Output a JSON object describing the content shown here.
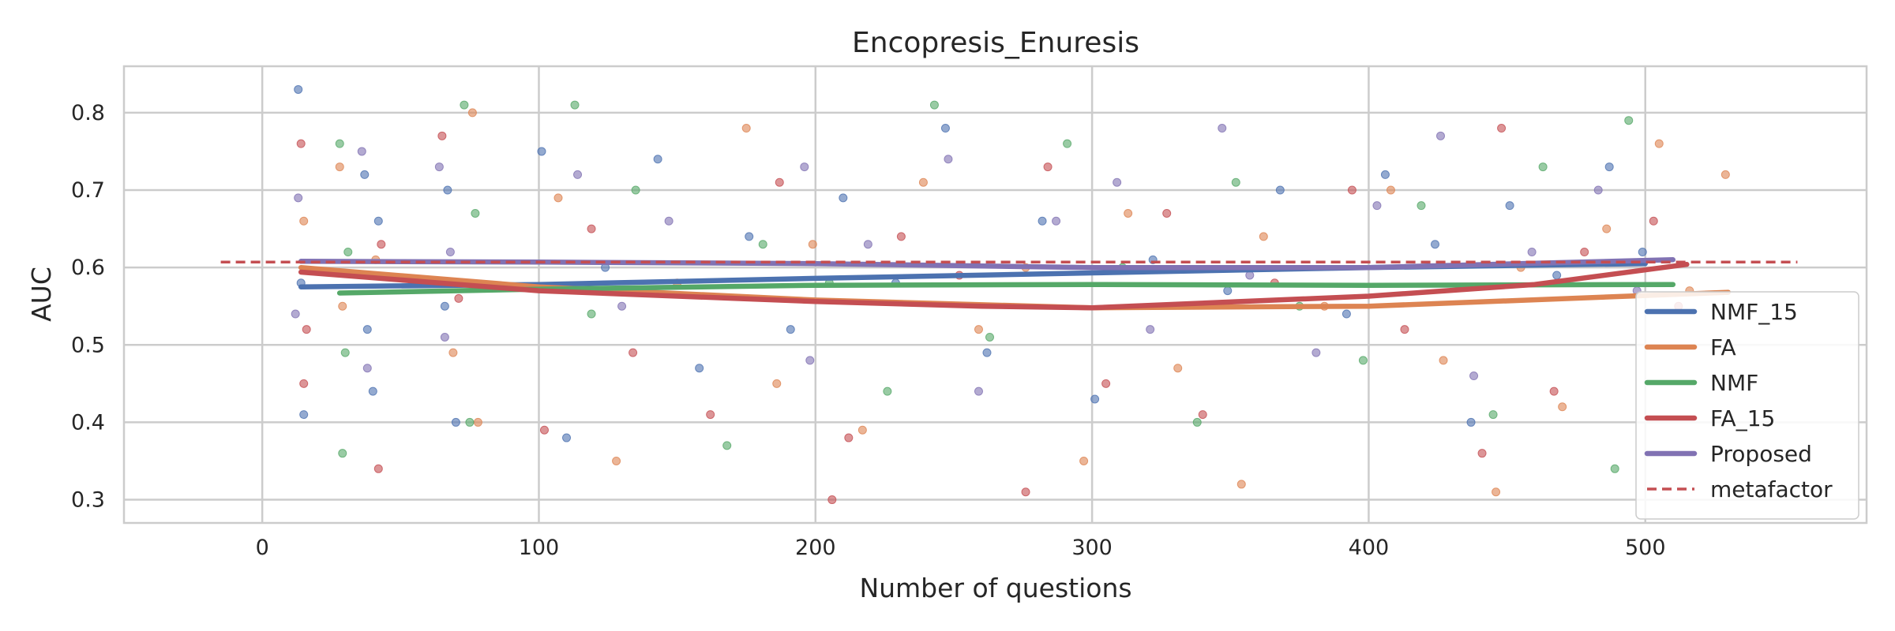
{
  "chart_data": {
    "type": "scatter",
    "title": "Encopresis_Enuresis",
    "xlabel": "Number of questions",
    "ylabel": "AUC",
    "xlim": [
      -50,
      580
    ],
    "ylim": [
      0.27,
      0.86
    ],
    "x_ticks": [
      0,
      100,
      200,
      300,
      400,
      500
    ],
    "y_ticks": [
      0.3,
      0.4,
      0.5,
      0.6,
      0.7,
      0.8
    ],
    "x_tick_labels": [
      "0",
      "100",
      "200",
      "300",
      "400",
      "500"
    ],
    "y_tick_labels": [
      "0.3",
      "0.4",
      "0.5",
      "0.6",
      "0.7",
      "0.8"
    ],
    "grid": true,
    "legend_position": "lower-right",
    "series": [
      {
        "name": "NMF_15",
        "color": "#4c72b0",
        "trend": {
          "x": [
            14,
            100,
            200,
            300,
            400,
            500
          ],
          "y": [
            0.575,
            0.578,
            0.586,
            0.593,
            0.6,
            0.605
          ]
        },
        "points": {
          "x": [
            13,
            14,
            15,
            37,
            38,
            40,
            42,
            66,
            67,
            70,
            101,
            110,
            124,
            143,
            158,
            176,
            191,
            210,
            229,
            247,
            262,
            282,
            301,
            322,
            349,
            368,
            392,
            406,
            424,
            437,
            451,
            468,
            487,
            499
          ],
          "y": [
            0.83,
            0.58,
            0.41,
            0.72,
            0.52,
            0.44,
            0.66,
            0.55,
            0.7,
            0.4,
            0.75,
            0.38,
            0.6,
            0.74,
            0.47,
            0.64,
            0.52,
            0.69,
            0.58,
            0.78,
            0.49,
            0.66,
            0.43,
            0.61,
            0.57,
            0.7,
            0.54,
            0.72,
            0.63,
            0.4,
            0.68,
            0.59,
            0.73,
            0.62
          ]
        }
      },
      {
        "name": "FA",
        "color": "#dd8452",
        "trend": {
          "x": [
            14,
            100,
            200,
            300,
            400,
            530
          ],
          "y": [
            0.6,
            0.575,
            0.558,
            0.548,
            0.55,
            0.568
          ]
        },
        "points": {
          "x": [
            15,
            28,
            29,
            41,
            69,
            76,
            78,
            107,
            128,
            150,
            175,
            186,
            199,
            217,
            239,
            259,
            276,
            297,
            313,
            331,
            354,
            362,
            384,
            408,
            427,
            446,
            455,
            470,
            486,
            505,
            516,
            529
          ],
          "y": [
            0.66,
            0.73,
            0.55,
            0.61,
            0.49,
            0.8,
            0.4,
            0.69,
            0.35,
            0.58,
            0.78,
            0.45,
            0.63,
            0.39,
            0.71,
            0.52,
            0.6,
            0.35,
            0.67,
            0.47,
            0.32,
            0.64,
            0.55,
            0.7,
            0.48,
            0.31,
            0.6,
            0.42,
            0.65,
            0.76,
            0.57,
            0.72
          ]
        }
      },
      {
        "name": "NMF",
        "color": "#55a868",
        "trend": {
          "x": [
            28,
            100,
            200,
            300,
            400,
            510
          ],
          "y": [
            0.567,
            0.572,
            0.577,
            0.578,
            0.577,
            0.578
          ]
        },
        "points": {
          "x": [
            28,
            29,
            30,
            31,
            73,
            75,
            77,
            113,
            119,
            135,
            168,
            181,
            205,
            226,
            243,
            263,
            291,
            311,
            338,
            352,
            375,
            398,
            419,
            445,
            463,
            489,
            494
          ],
          "y": [
            0.76,
            0.36,
            0.49,
            0.62,
            0.81,
            0.4,
            0.67,
            0.81,
            0.54,
            0.7,
            0.37,
            0.63,
            0.58,
            0.44,
            0.81,
            0.51,
            0.76,
            0.6,
            0.4,
            0.71,
            0.55,
            0.48,
            0.68,
            0.41,
            0.73,
            0.34,
            0.79
          ]
        }
      },
      {
        "name": "FA_15",
        "color": "#c44e52",
        "trend": {
          "x": [
            14,
            100,
            200,
            260,
            300,
            400,
            460,
            515
          ],
          "y": [
            0.594,
            0.57,
            0.556,
            0.55,
            0.548,
            0.563,
            0.578,
            0.604
          ]
        },
        "points": {
          "x": [
            14,
            15,
            16,
            42,
            43,
            65,
            71,
            102,
            119,
            134,
            162,
            187,
            206,
            212,
            231,
            252,
            276,
            284,
            305,
            327,
            340,
            366,
            394,
            413,
            441,
            448,
            467,
            478,
            503,
            512
          ],
          "y": [
            0.76,
            0.45,
            0.52,
            0.34,
            0.63,
            0.77,
            0.56,
            0.39,
            0.65,
            0.49,
            0.41,
            0.71,
            0.3,
            0.38,
            0.64,
            0.59,
            0.31,
            0.73,
            0.45,
            0.67,
            0.41,
            0.58,
            0.7,
            0.52,
            0.36,
            0.78,
            0.44,
            0.62,
            0.66,
            0.55
          ]
        }
      },
      {
        "name": "Proposed",
        "color": "#8172b3",
        "trend": {
          "x": [
            14,
            100,
            200,
            300,
            400,
            510
          ],
          "y": [
            0.608,
            0.607,
            0.605,
            0.6,
            0.6,
            0.61
          ]
        },
        "points": {
          "x": [
            12,
            13,
            36,
            38,
            64,
            66,
            68,
            114,
            130,
            147,
            196,
            198,
            219,
            248,
            259,
            287,
            309,
            321,
            347,
            357,
            381,
            403,
            426,
            438,
            459,
            483,
            497
          ],
          "y": [
            0.54,
            0.69,
            0.75,
            0.47,
            0.73,
            0.51,
            0.62,
            0.72,
            0.55,
            0.66,
            0.73,
            0.48,
            0.63,
            0.74,
            0.44,
            0.66,
            0.71,
            0.52,
            0.78,
            0.59,
            0.49,
            0.68,
            0.77,
            0.46,
            0.62,
            0.7,
            0.57
          ]
        }
      },
      {
        "name": "metafactor",
        "color": "#c44e52",
        "line_style": "dashed",
        "line": {
          "x": [
            -15,
            555
          ],
          "y": [
            0.607,
            0.607
          ]
        }
      }
    ]
  }
}
